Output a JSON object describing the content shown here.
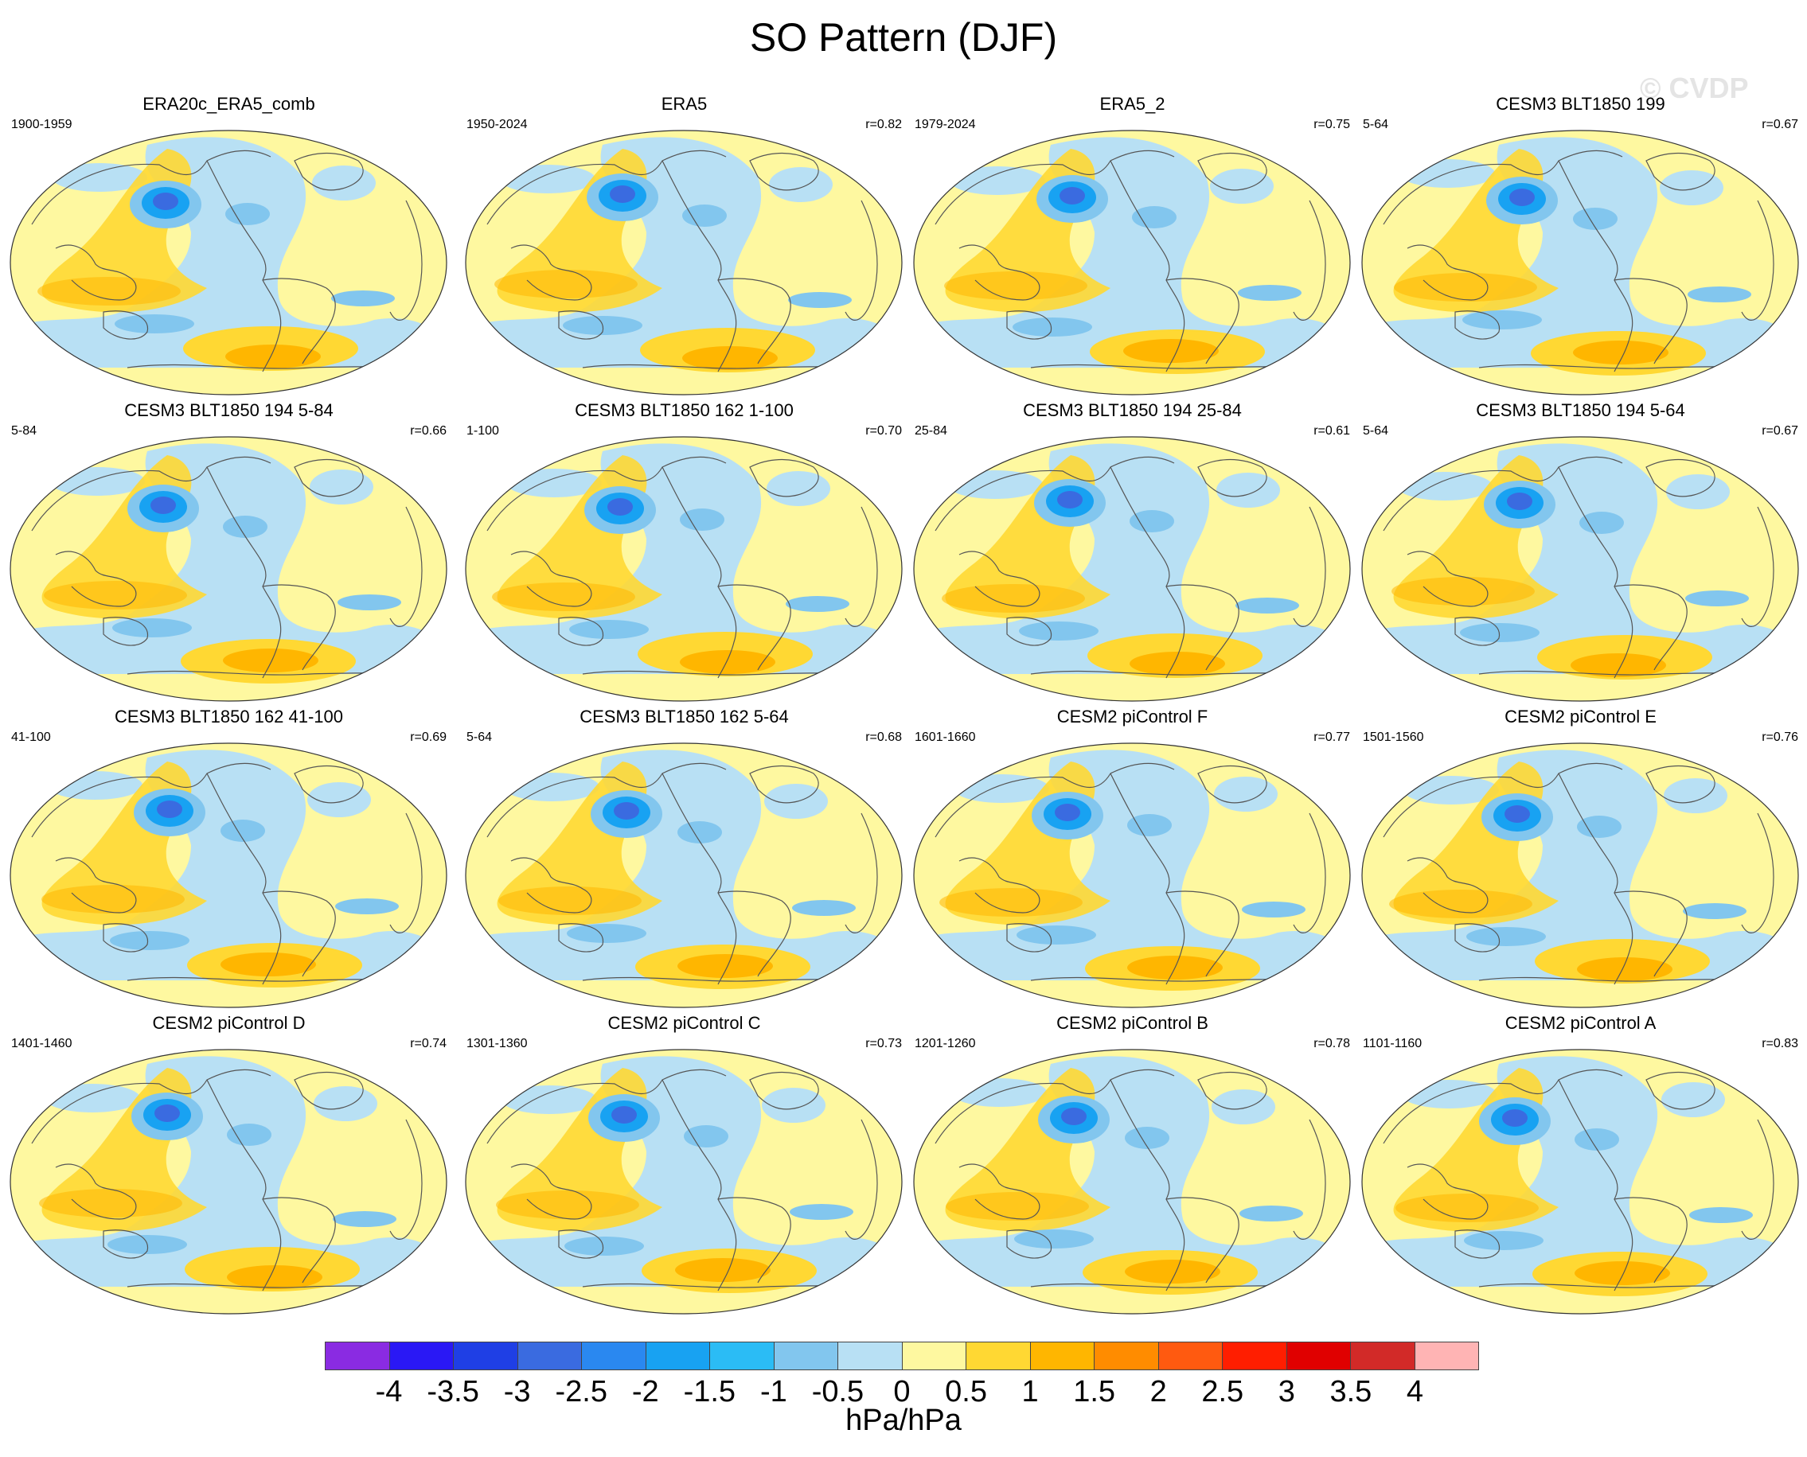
{
  "title": "SO Pattern (DJF)",
  "watermark": "© CVDP",
  "panels": [
    {
      "title": "ERA20c_ERA5_comb",
      "range": "1900-1959",
      "corr": ""
    },
    {
      "title": "ERA5",
      "range": "1950-2024",
      "corr": "r=0.82"
    },
    {
      "title": "ERA5_2",
      "range": "1979-2024",
      "corr": "r=0.75"
    },
    {
      "title": "CESM3 BLT1850 199",
      "range": "5-64",
      "corr": "r=0.67"
    },
    {
      "title": "CESM3 BLT1850 194 5-84",
      "range": "5-84",
      "corr": "r=0.66"
    },
    {
      "title": "CESM3 BLT1850 162 1-100",
      "range": "1-100",
      "corr": "r=0.70"
    },
    {
      "title": "CESM3 BLT1850 194 25-84",
      "range": "25-84",
      "corr": "r=0.61"
    },
    {
      "title": "CESM3 BLT1850 194 5-64",
      "range": "5-64",
      "corr": "r=0.67"
    },
    {
      "title": "CESM3 BLT1850 162 41-100",
      "range": "41-100",
      "corr": "r=0.69"
    },
    {
      "title": "CESM3 BLT1850 162 5-64",
      "range": "5-64",
      "corr": "r=0.68"
    },
    {
      "title": "CESM2 piControl F",
      "range": "1601-1660",
      "corr": "r=0.77"
    },
    {
      "title": "CESM2 piControl E",
      "range": "1501-1560",
      "corr": "r=0.76"
    },
    {
      "title": "CESM2 piControl D",
      "range": "1401-1460",
      "corr": "r=0.74"
    },
    {
      "title": "CESM2 piControl C",
      "range": "1301-1360",
      "corr": "r=0.73"
    },
    {
      "title": "CESM2 piControl B",
      "range": "1201-1260",
      "corr": "r=0.78"
    },
    {
      "title": "CESM2 piControl A",
      "range": "1101-1160",
      "corr": "r=0.83"
    }
  ],
  "colorbar": {
    "colors": [
      "#8a2be2",
      "#2a18f5",
      "#1f3fe5",
      "#3a6be0",
      "#2a88f0",
      "#18a2f2",
      "#2bbcf5",
      "#82c6ee",
      "#b8e0f4",
      "#fef8a0",
      "#ffd833",
      "#ffb600",
      "#ff8c00",
      "#ff5a10",
      "#ff1e00",
      "#e00000",
      "#d22a28",
      "#ffb4b4"
    ],
    "ticks": [
      "-4",
      "-3.5",
      "-3",
      "-2.5",
      "-2",
      "-1.5",
      "-1",
      "-0.5",
      "0",
      "0.5",
      "1",
      "1.5",
      "2",
      "2.5",
      "3",
      "3.5",
      "4"
    ],
    "units": "hPa/hPa"
  }
}
